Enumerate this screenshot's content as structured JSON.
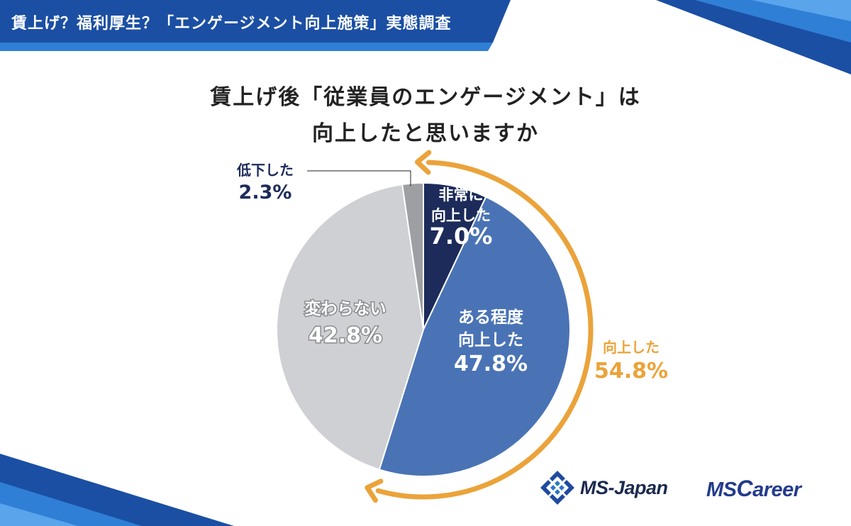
{
  "banner": {
    "title": "賃上げ？福利厚生？「エンゲージメント向上施策」実態調査"
  },
  "chart_data": {
    "type": "pie",
    "title_line1": "賃上げ後「従業員のエンゲージメント」は",
    "title_line2": "向上したと思いますか",
    "slices": [
      {
        "label_lines": [
          "非常に",
          "向上した"
        ],
        "value": 7.0,
        "value_text": "7.0%",
        "color": "#1c2b5a",
        "text_color": "#ffffff"
      },
      {
        "label_lines": [
          "ある程度",
          "向上した"
        ],
        "value": 47.8,
        "value_text": "47.8%",
        "color": "#4a73b5",
        "text_color": "#ffffff"
      },
      {
        "label_lines": [
          "変わらない"
        ],
        "value": 42.8,
        "value_text": "42.8%",
        "color": "#cfd0d4",
        "text_color": "#ffffff"
      },
      {
        "label_lines": [
          "低下した"
        ],
        "value": 2.3,
        "value_text": "2.3%",
        "color": "#9d9fa3",
        "text_color": "#1c2b5a"
      }
    ],
    "annotation": {
      "label": "向上した",
      "value": 54.8,
      "value_text": "54.8%",
      "color": "#eba33a"
    }
  },
  "logos": {
    "msjapan": "MS-Japan",
    "mscareer_prefix": "MS",
    "mscareer_big": "C",
    "mscareer_rest": "areer"
  },
  "colors": {
    "banner": "#1b4fa3",
    "banner_accent": "#2f7fd6",
    "title_text": "#222222"
  }
}
